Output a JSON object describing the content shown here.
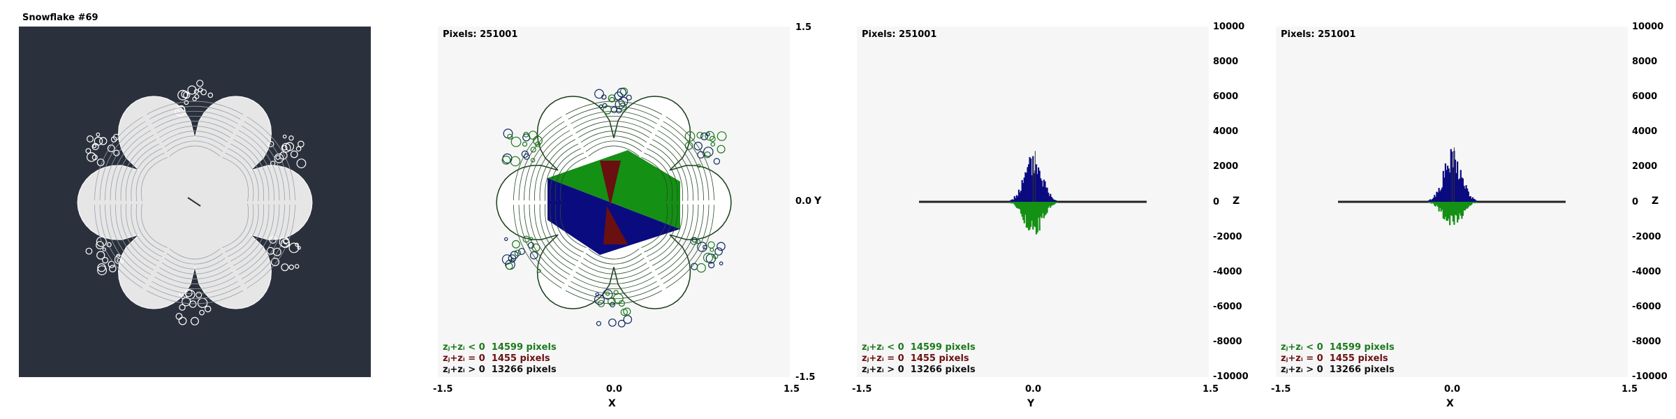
{
  "title": "Snowflake #69",
  "colors": {
    "background_dark": "#2b313c",
    "plot_bg": "#f6f6f6",
    "neg": "#1c7a1c",
    "zero": "#6a1010",
    "pos": "#0b0b80",
    "flake_white": "#e6e6e6"
  },
  "chart_data": [
    {
      "type": "image",
      "title": "Snowflake #69"
    },
    {
      "type": "scatter",
      "pixels_label": "Pixels: 251001",
      "xlabel": "X",
      "ylabel": "Y",
      "xlim": [
        -1.5,
        1.5
      ],
      "ylim": [
        -1.5,
        1.5
      ],
      "x_ticks": [
        "-1.5",
        "0.0",
        "1.5"
      ],
      "y_ticks": [
        "1.5",
        "0.0",
        "-1.5"
      ],
      "legend": [
        {
          "label": "zⱼ+zᵢ < 0",
          "count": "14599 pixels",
          "color": "#1c7a1c"
        },
        {
          "label": "zⱼ+zᵢ = 0",
          "count": "1455 pixels",
          "color": "#6a1010"
        },
        {
          "label": "zⱼ+zᵢ > 0",
          "count": "13266 pixels",
          "color": "#111111"
        }
      ]
    },
    {
      "type": "histogram",
      "pixels_label": "Pixels: 251001",
      "xlabel": "Y",
      "ylabel": "Z",
      "xlim": [
        -1.5,
        1.5
      ],
      "ylim": [
        -10000,
        10000
      ],
      "x_ticks": [
        "-1.5",
        "0.0",
        "1.5"
      ],
      "z_ticks": [
        "10000",
        "8000",
        "6000",
        "4000",
        "2000",
        "0",
        "-2000",
        "-4000",
        "-6000",
        "-8000",
        "-10000"
      ],
      "positive_peak": 2900,
      "negative_peak": -2100,
      "legend": [
        {
          "label": "zⱼ+zᵢ < 0",
          "count": "14599 pixels",
          "color": "#1c7a1c"
        },
        {
          "label": "zⱼ+zᵢ = 0",
          "count": "1455 pixels",
          "color": "#6a1010"
        },
        {
          "label": "zⱼ+zᵢ > 0",
          "count": "13266 pixels",
          "color": "#111111"
        }
      ]
    },
    {
      "type": "histogram",
      "pixels_label": "Pixels: 251001",
      "xlabel": "X",
      "ylabel": "Z",
      "xlim": [
        -1.5,
        1.5
      ],
      "ylim": [
        -10000,
        10000
      ],
      "x_ticks": [
        "-1.5",
        "0.0",
        "1.5"
      ],
      "z_ticks": [
        "10000",
        "8000",
        "6000",
        "4000",
        "2000",
        "0",
        "-2000",
        "-4000",
        "-6000",
        "-8000",
        "-10000"
      ],
      "positive_peak": 3100,
      "negative_peak": -1700,
      "legend": [
        {
          "label": "zⱼ+zᵢ < 0",
          "count": "14599 pixels",
          "color": "#1c7a1c"
        },
        {
          "label": "zⱼ+zᵢ = 0",
          "count": "1455 pixels",
          "color": "#6a1010"
        },
        {
          "label": "zⱼ+zᵢ > 0",
          "count": "13266 pixels",
          "color": "#111111"
        }
      ]
    }
  ]
}
